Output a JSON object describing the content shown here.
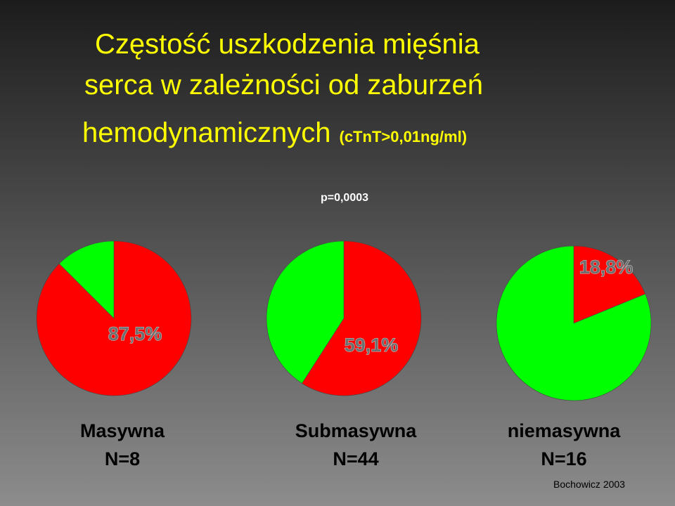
{
  "title_lines": [
    "Częstość uszkodzenia mięśnia",
    "serca w zależności od zaburzeń",
    "hemodynamicznych"
  ],
  "title_note": "(cTnT>0,01ng/ml)",
  "p_value": "p=0,0003",
  "source": "Bochowicz 2003",
  "chart_data": [
    {
      "type": "pie",
      "title": "Masywna",
      "subtitle": "N=8",
      "values": [
        87.5,
        12.5
      ],
      "value_labels": [
        "87,5%",
        null
      ],
      "colors": [
        "#ff0000",
        "#00ff00"
      ]
    },
    {
      "type": "pie",
      "title": "Submasywna",
      "subtitle": "N=44",
      "values": [
        59.1,
        40.9
      ],
      "value_labels": [
        "59,1%",
        null
      ],
      "colors": [
        "#ff0000",
        "#00ff00"
      ]
    },
    {
      "type": "pie",
      "title": "niemasywna",
      "subtitle": "N=16",
      "values": [
        18.8,
        81.2
      ],
      "value_labels": [
        "18,8%",
        null
      ],
      "colors": [
        "#ff0000",
        "#00ff00"
      ]
    }
  ]
}
